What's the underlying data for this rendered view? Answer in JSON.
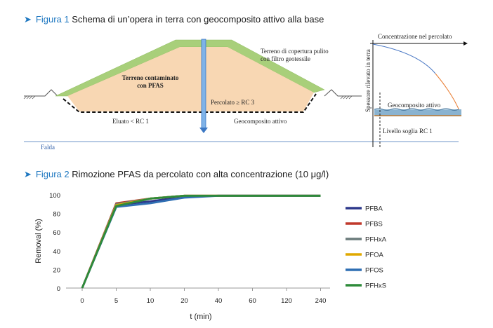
{
  "figure1": {
    "label": "Figura 1",
    "title": "Schema di un’opera in terra con geocomposito attivo alla base",
    "labels": {
      "contaminated": "Terreno contaminato",
      "contaminated2": "con PFAS",
      "cover": "Terreno di copertura pulito",
      "cover2": "con filtro geotessile",
      "percolate": "Percolato ≥ RC 3",
      "eluate": "Eluato < RC 1",
      "geocomposite": "Geocomposito attivo",
      "aquifer": "Falda"
    },
    "inset": {
      "xlabel": "Concentrazione nel percolato",
      "ylabel": "Spessore rilevato in terra",
      "layer": "Geocomposito attivo",
      "threshold": "Livello soglia RC 1"
    }
  },
  "figure2": {
    "label": "Figura 2",
    "title": "Rimozione PFAS da percolato con alta concentrazione (10 μg/l)"
  },
  "chart_data": {
    "type": "line",
    "categories": [
      "0",
      "5",
      "10",
      "20",
      "40",
      "60",
      "120",
      "240"
    ],
    "yticks": [
      "0",
      "20",
      "40",
      "60",
      "80",
      "100"
    ],
    "ylim": [
      0,
      100
    ],
    "xlabel": "t (min)",
    "ylabel": "Removal (%)",
    "legend_position": "right",
    "series": [
      {
        "name": "PFBA",
        "color": "#2e3a8c",
        "values": [
          0,
          89,
          93,
          98,
          99,
          99,
          99,
          99
        ]
      },
      {
        "name": "PFBS",
        "color": "#c0392b",
        "values": [
          0,
          91,
          96,
          99,
          99,
          99,
          99,
          99
        ]
      },
      {
        "name": "PFHxA",
        "color": "#6b7b7b",
        "values": [
          0,
          90,
          96,
          99,
          99,
          99,
          99,
          99
        ]
      },
      {
        "name": "PFOA",
        "color": "#e0a800",
        "values": [
          0,
          89,
          96,
          99,
          99,
          99,
          99,
          99
        ]
      },
      {
        "name": "PFOS",
        "color": "#2f6fb3",
        "values": [
          0,
          87,
          91,
          97,
          99,
          99,
          99,
          99
        ]
      },
      {
        "name": "PFHxS",
        "color": "#2e8b3a",
        "values": [
          0,
          88,
          96,
          99,
          99,
          99,
          99,
          99
        ]
      }
    ]
  }
}
